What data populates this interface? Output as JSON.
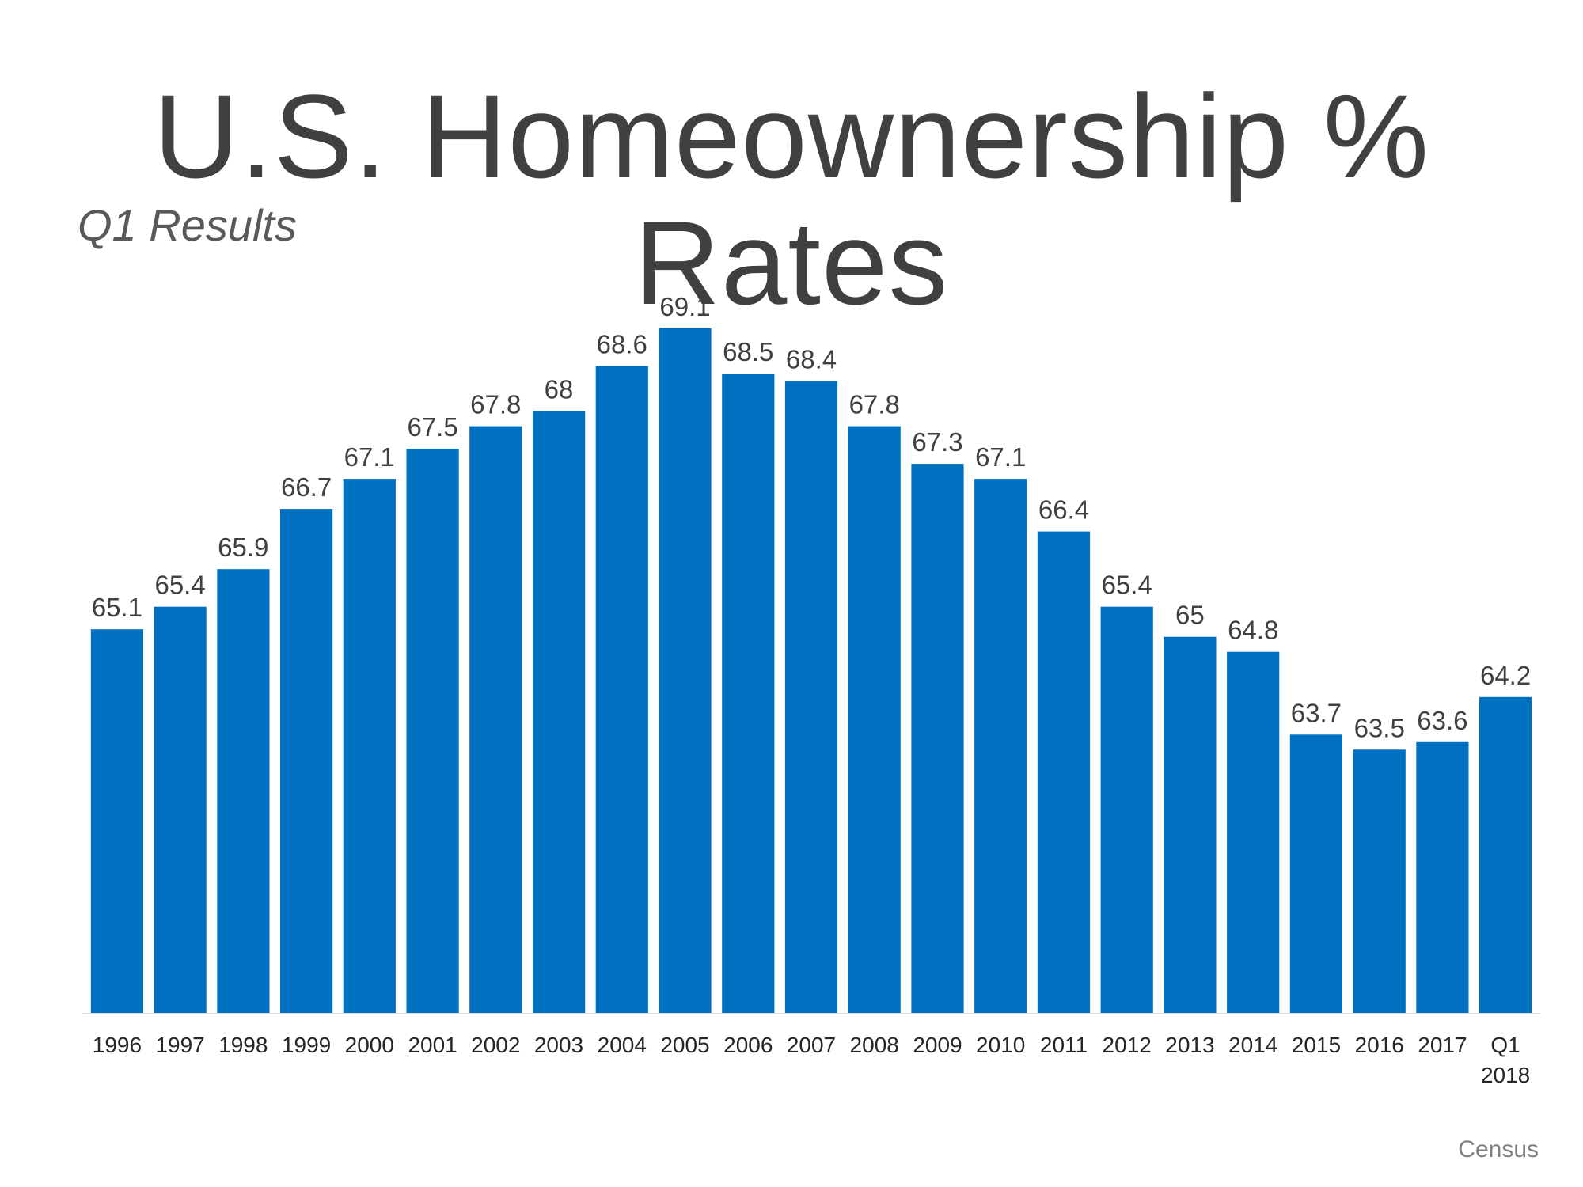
{
  "title": "U.S. Homeownership % Rates",
  "subtitle": "Q1 Results",
  "source": "Census",
  "colors": {
    "bar": "#0070C0",
    "axis": "#D9D9D9"
  },
  "chart_data": {
    "type": "bar",
    "title": "U.S. Homeownership % Rates",
    "subtitle": "Q1 Results",
    "xlabel": "",
    "ylabel": "",
    "categories": [
      "1996",
      "1997",
      "1998",
      "1999",
      "2000",
      "2001",
      "2002",
      "2003",
      "2004",
      "2005",
      "2006",
      "2007",
      "2008",
      "2009",
      "2010",
      "2011",
      "2012",
      "2013",
      "2014",
      "2015",
      "2016",
      "2017",
      "Q1 2018"
    ],
    "category_lines": [
      [
        "1996"
      ],
      [
        "1997"
      ],
      [
        "1998"
      ],
      [
        "1999"
      ],
      [
        "2000"
      ],
      [
        "2001"
      ],
      [
        "2002"
      ],
      [
        "2003"
      ],
      [
        "2004"
      ],
      [
        "2005"
      ],
      [
        "2006"
      ],
      [
        "2007"
      ],
      [
        "2008"
      ],
      [
        "2009"
      ],
      [
        "2010"
      ],
      [
        "2011"
      ],
      [
        "2012"
      ],
      [
        "2013"
      ],
      [
        "2014"
      ],
      [
        "2015"
      ],
      [
        "2016"
      ],
      [
        "2017"
      ],
      [
        "Q1",
        "2018"
      ]
    ],
    "values": [
      65.1,
      65.4,
      65.9,
      66.7,
      67.1,
      67.5,
      67.8,
      68,
      68.6,
      69.1,
      68.5,
      68.4,
      67.8,
      67.3,
      67.1,
      66.4,
      65.4,
      65,
      64.8,
      63.7,
      63.5,
      63.6,
      64.2
    ],
    "value_labels": [
      "65.1",
      "65.4",
      "65.9",
      "66.7",
      "67.1",
      "67.5",
      "67.8",
      "68",
      "68.6",
      "69.1",
      "68.5",
      "68.4",
      "67.8",
      "67.3",
      "67.1",
      "66.4",
      "65.4",
      "65",
      "64.8",
      "63.7",
      "63.5",
      "63.6",
      "64.2"
    ],
    "ylim": [
      60,
      69.1
    ],
    "grid": false,
    "legend": "none",
    "data_labels": "above"
  }
}
